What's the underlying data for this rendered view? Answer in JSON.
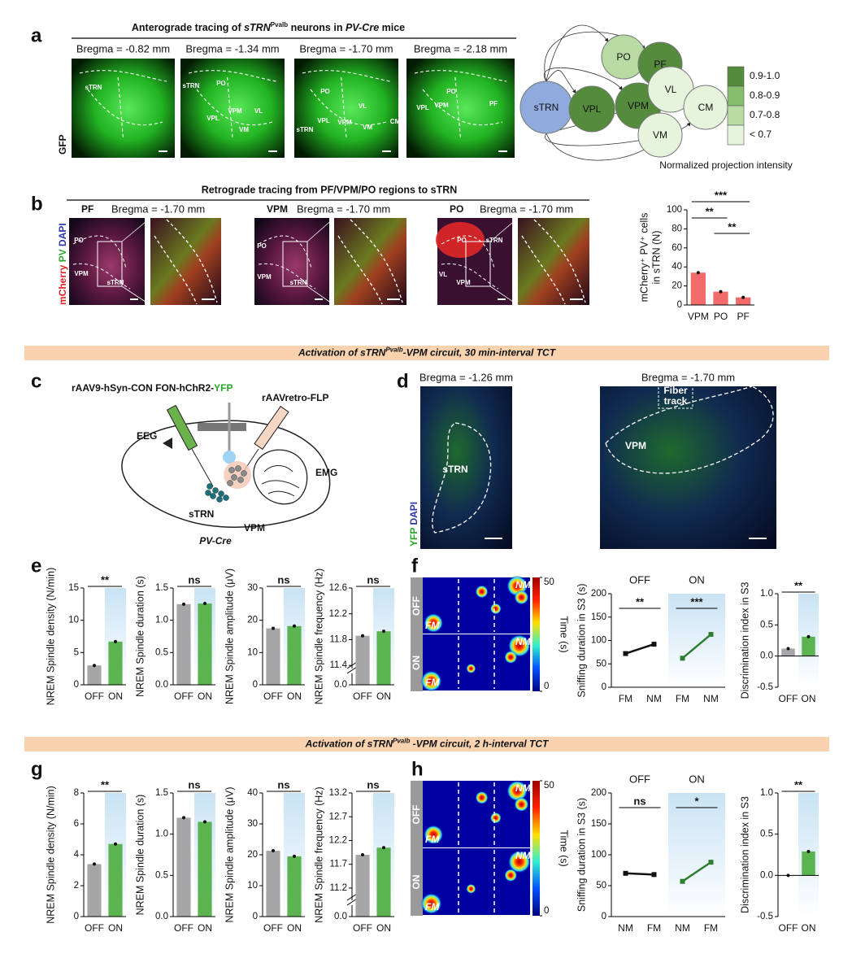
{
  "panel_labels": [
    "a",
    "b",
    "c",
    "d",
    "e",
    "f",
    "g",
    "h"
  ],
  "a": {
    "title": [
      "Anterograde tracing of ",
      "sTRN",
      "Pvalb",
      " neurons in ",
      "PV-Cre",
      " mice"
    ],
    "stain": "GFP",
    "images": [
      {
        "bregma": "Bregma = -0.82 mm",
        "regions": [
          "sTRN"
        ]
      },
      {
        "bregma": "Bregma = -1.34 mm",
        "regions": [
          "sTRN",
          "PO",
          "VPL",
          "VPM",
          "VL",
          "VM"
        ]
      },
      {
        "bregma": "Bregma = -1.70 mm",
        "regions": [
          "PO",
          "sTRN",
          "VPL",
          "VPM",
          "VL",
          "VM",
          "CM"
        ]
      },
      {
        "bregma": "Bregma = -2.18 mm",
        "regions": [
          "PO",
          "VPL",
          "VPM",
          "PF"
        ]
      }
    ],
    "diagram": {
      "nodes": [
        {
          "label": "sTRN",
          "color": "#8faadc"
        },
        {
          "label": "PO",
          "color": "#b7dba3"
        },
        {
          "label": "PF",
          "color": "#558b3d"
        },
        {
          "label": "VPL",
          "color": "#558b3d"
        },
        {
          "label": "VPM",
          "color": "#558b3d"
        },
        {
          "label": "VL",
          "color": "#e6f3dd"
        },
        {
          "label": "CM",
          "color": "#e6f3dd"
        },
        {
          "label": "VM",
          "color": "#e6f3dd"
        }
      ],
      "legend": [
        {
          "label": "0.9-1.0",
          "color": "#558b3d"
        },
        {
          "label": "0.8-0.9",
          "color": "#86bd6c"
        },
        {
          "label": "0.7-0.8",
          "color": "#b7dba3"
        },
        {
          "label": "< 0.7",
          "color": "#e6f3dd"
        }
      ],
      "legend_title": "Normalized projection intensity"
    }
  },
  "b": {
    "title": "Retrograde tracing from PF/VPM/PO regions to sTRN",
    "stain": [
      "mCherry",
      " PV",
      " DAPI"
    ],
    "images": [
      {
        "target": "PF",
        "bregma": "Bregma = -1.70 mm",
        "regions": [
          "PO",
          "VPM",
          "sTRN"
        ]
      },
      {
        "target": "VPM",
        "bregma": "Bregma = -1.70 mm",
        "regions": [
          "PO",
          "VPM",
          "sTRN"
        ]
      },
      {
        "target": "PO",
        "bregma": "Bregma = -1.70 mm",
        "regions": [
          "PO",
          "sTRN",
          "VL",
          "VPM"
        ]
      }
    ]
  },
  "bands": [
    [
      "Activation of sTRN",
      "Pvalb",
      "-VPM circuit, 30 min-interval TCT"
    ],
    [
      "Activation of sTRN",
      "Pvalb",
      " -VPM circuit, 2 h-interval TCT"
    ]
  ],
  "c": {
    "virus1": [
      "rAAV9-hSyn-CON FON-hChR2-",
      "YFP"
    ],
    "virus2": "rAAVretro-FLP",
    "labels": [
      "EEG",
      "EMG",
      "sTRN",
      "VPM"
    ],
    "mouse": "PV-Cre"
  },
  "d": {
    "stain": [
      "YFP",
      " DAPI"
    ],
    "images": [
      {
        "bregma": "Bregma = -1.26 mm",
        "regions": [
          "sTRN"
        ]
      },
      {
        "bregma": "Bregma = -1.70 mm",
        "regions": [
          "VPM"
        ],
        "box": [
          "Fiber",
          "track"
        ]
      }
    ]
  },
  "f": {
    "heatmap": {
      "rows": [
        "OFF",
        "ON"
      ],
      "objects": [
        "FM",
        "NM"
      ],
      "colorbar_label": "Time (s)",
      "colorbar_lim": [
        0,
        50
      ],
      "colorbar_ticks": [
        0,
        50
      ]
    }
  },
  "h": {
    "heatmap": {
      "rows": [
        "OFF",
        "ON"
      ],
      "objects": [
        "FM",
        "NM"
      ],
      "colorbar_label": "Time (s)",
      "colorbar_lim": [
        0,
        50
      ],
      "colorbar_ticks": [
        0,
        50
      ]
    }
  },
  "chart_data": [
    {
      "type": "bar",
      "ylabel": [
        "mCherry⁺ PV⁺ cells",
        "in sTRN (N)"
      ],
      "categories": [
        "VPM",
        "PO",
        "PF"
      ],
      "values": [
        34,
        14,
        8
      ],
      "color": "#f26b6b",
      "ylim": [
        0,
        100
      ],
      "yticks": [
        0,
        20,
        40,
        60,
        80,
        100
      ],
      "significance": [
        "***",
        "**",
        "**"
      ]
    },
    {
      "type": "bar",
      "ylabel": "NREM Spindle density (N/min)",
      "categories": [
        "OFF",
        "ON"
      ],
      "values": [
        3.0,
        6.7
      ],
      "colors": [
        "#a6a6a8",
        "#5cb451"
      ],
      "ylim": [
        0,
        15
      ],
      "yticks": [
        0,
        5,
        10,
        15
      ],
      "significance": [
        "**"
      ]
    },
    {
      "type": "bar",
      "ylabel": "NREM Spindle duration (s)",
      "categories": [
        "OFF",
        "ON"
      ],
      "values": [
        1.25,
        1.26
      ],
      "colors": [
        "#a6a6a8",
        "#5cb451"
      ],
      "ylim": [
        0,
        1.5
      ],
      "yticks": [
        {
          "value": 0,
          "label": "0.0"
        },
        0.5,
        {
          "value": 1,
          "label": "1.0"
        },
        1.5
      ],
      "significance": [
        "ns"
      ]
    },
    {
      "type": "bar",
      "ylabel": "NREM Spindle amplitude (μV)",
      "categories": [
        "OFF",
        "ON"
      ],
      "values": [
        17.5,
        18.2
      ],
      "colors": [
        "#a6a6a8",
        "#5cb451"
      ],
      "ylim": [
        0,
        30
      ],
      "yticks": [
        0,
        10,
        20,
        30
      ],
      "significance": [
        "ns"
      ]
    },
    {
      "type": "bar",
      "ylabel": "NREM Spindle frequency (Hz)",
      "categories": [
        "OFF",
        "ON"
      ],
      "values": [
        11.86,
        11.93
      ],
      "colors": [
        "#a6a6a8",
        "#5cb451"
      ],
      "ylim": [
        11.1,
        12.6
      ],
      "yticks": [
        11.4,
        11.8,
        12.2,
        12.6
      ],
      "axis_break_tick": {
        "value": 0,
        "label": "0.0"
      },
      "significance": [
        "ns"
      ]
    },
    {
      "type": "line",
      "ylabel": "Sniffing duration in S3 (s)",
      "categories": [
        "FM",
        "NM"
      ],
      "series": [
        {
          "name": "OFF",
          "color": "#111111",
          "values": [
            72,
            92
          ]
        },
        {
          "name": "ON",
          "color": "#2e7d32",
          "values": [
            62,
            113
          ]
        }
      ],
      "ylim": [
        0,
        200
      ],
      "yticks": [
        0,
        50,
        100,
        150,
        200
      ],
      "significance": [
        "**",
        "***"
      ]
    },
    {
      "type": "bar",
      "ylabel": "Discrimination index in S3",
      "categories": [
        "OFF",
        "ON"
      ],
      "values": [
        0.12,
        0.31
      ],
      "colors": [
        "#a6a6a8",
        "#5cb451"
      ],
      "ylim": [
        -0.5,
        1.0
      ],
      "yticks": [
        -0.5,
        {
          "value": 0,
          "label": "0.0"
        },
        0.5,
        {
          "value": 1,
          "label": "1.0"
        }
      ],
      "significance": [
        "**"
      ]
    },
    {
      "type": "bar",
      "ylabel": "NREM Spindle density (N/min)",
      "categories": [
        "OFF",
        "ON"
      ],
      "values": [
        3.4,
        4.7
      ],
      "colors": [
        "#a6a6a8",
        "#5cb451"
      ],
      "ylim": [
        0,
        8
      ],
      "yticks": [
        0,
        2,
        4,
        6,
        8
      ],
      "significance": [
        "**"
      ]
    },
    {
      "type": "bar",
      "ylabel": "NREM Spindle duration (s)",
      "categories": [
        "OFF",
        "ON"
      ],
      "values": [
        1.2,
        1.15
      ],
      "colors": [
        "#a6a6a8",
        "#5cb451"
      ],
      "ylim": [
        0,
        1.5
      ],
      "yticks": [
        {
          "value": 0,
          "label": "0.0"
        },
        0.5,
        {
          "value": 1,
          "label": "1.0"
        },
        1.5
      ],
      "significance": [
        "ns"
      ]
    },
    {
      "type": "bar",
      "ylabel": "NREM Spindle amplitude (μV)",
      "categories": [
        "OFF",
        "ON"
      ],
      "values": [
        21.3,
        19.5
      ],
      "colors": [
        "#a6a6a8",
        "#5cb451"
      ],
      "ylim": [
        0,
        40
      ],
      "yticks": [
        0,
        10,
        20,
        30,
        40
      ],
      "significance": [
        "ns"
      ]
    },
    {
      "type": "bar",
      "ylabel": "NREM Spindle frequency (Hz)",
      "categories": [
        "OFF",
        "ON"
      ],
      "values": [
        11.9,
        12.05
      ],
      "colors": [
        "#a6a6a8",
        "#5cb451"
      ],
      "ylim": [
        10.6,
        13.2
      ],
      "yticks": [
        11.2,
        11.7,
        12.2,
        12.7,
        13.2
      ],
      "axis_break_tick": {
        "value": 0,
        "label": "0.0"
      },
      "significance": [
        "ns"
      ]
    },
    {
      "type": "line",
      "ylabel": "Sniffing duration in S3 (s)",
      "categories": [
        "NM",
        "FM"
      ],
      "series": [
        {
          "name": "OFF",
          "color": "#111111",
          "values": [
            70,
            68
          ]
        },
        {
          "name": "ON",
          "color": "#2e7d32",
          "values": [
            57,
            88
          ]
        }
      ],
      "ylim": [
        0,
        200
      ],
      "yticks": [
        0,
        50,
        100,
        150,
        200
      ],
      "significance": [
        "ns",
        "*"
      ]
    },
    {
      "type": "bar",
      "ylabel": "Discrimination index in S3",
      "categories": [
        "OFF",
        "ON"
      ],
      "values": [
        0,
        0.29
      ],
      "colors": [
        "#a6a6a8",
        "#5cb451"
      ],
      "ylim": [
        -0.5,
        1.0
      ],
      "yticks": [
        -0.5,
        {
          "value": 0,
          "label": "0.0"
        },
        0.5,
        {
          "value": 1,
          "label": "1.0"
        }
      ],
      "significance": [
        "**"
      ]
    }
  ]
}
